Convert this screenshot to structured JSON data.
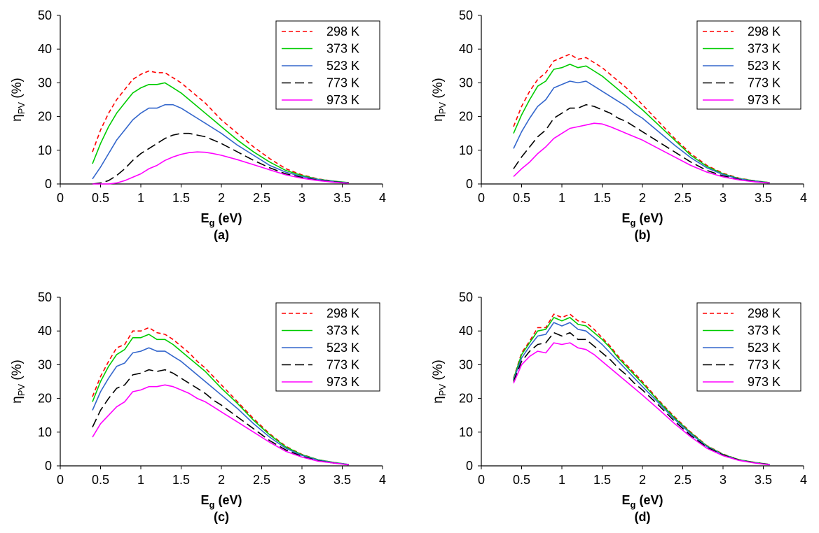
{
  "figure": {
    "legend_labels": [
      "298 K",
      "373 K",
      "523 K",
      "773 K",
      "973 K"
    ],
    "legend_placement": "top-right",
    "series_styles": [
      {
        "color": "#ff0000",
        "dash": "dashed"
      },
      {
        "color": "#00cc00",
        "dash": "solid"
      },
      {
        "color": "#3366cc",
        "dash": "solid"
      },
      {
        "color": "#000000",
        "dash": "long-dashed"
      },
      {
        "color": "#ff00ff",
        "dash": "solid"
      }
    ]
  },
  "chart_data": [
    {
      "type": "line",
      "panel_label": "(a)",
      "xlabel_main": "E",
      "xlabel_sub": "g",
      "xlabel_unit": " (eV)",
      "ylabel_main": "η",
      "ylabel_sub": "PV",
      "ylabel_unit": " (%)",
      "xlim": [
        0,
        4
      ],
      "ylim": [
        0,
        50
      ],
      "xticks": [
        "0",
        "0.5",
        "1",
        "1.5",
        "2",
        "2.5",
        "3",
        "3.5",
        "4"
      ],
      "yticks": [
        "0",
        "10",
        "20",
        "30",
        "40",
        "50"
      ],
      "grid": false,
      "x": [
        0.4,
        0.5,
        0.6,
        0.7,
        0.8,
        0.9,
        1.0,
        1.1,
        1.2,
        1.3,
        1.4,
        1.5,
        1.6,
        1.7,
        1.8,
        1.9,
        2.0,
        2.2,
        2.4,
        2.6,
        2.8,
        3.0,
        3.2,
        3.4,
        3.58
      ],
      "series": [
        {
          "name": "298 K",
          "values": [
            9.5,
            16,
            21,
            25,
            28,
            31,
            32.5,
            33.5,
            33,
            33,
            31.5,
            30,
            28,
            26,
            24,
            21.5,
            19,
            15,
            11,
            7.5,
            4.5,
            2.7,
            1.5,
            0.8,
            0.4
          ]
        },
        {
          "name": "373 K",
          "values": [
            6,
            12,
            17,
            21,
            24,
            27,
            28.5,
            29.5,
            29.5,
            30,
            28.5,
            27,
            25,
            23,
            21,
            19,
            17,
            13,
            9.5,
            6.5,
            4,
            2.5,
            1.4,
            0.8,
            0.4
          ]
        },
        {
          "name": "523 K",
          "values": [
            1.5,
            5,
            9,
            13,
            16,
            19,
            21,
            22.5,
            22.5,
            23.5,
            23.5,
            22.5,
            21,
            19.5,
            18,
            16.5,
            15,
            11.5,
            8.5,
            5.5,
            3.5,
            2.2,
            1.3,
            0.7,
            0.3
          ]
        },
        {
          "name": "773 K",
          "values": [
            0,
            0.3,
            1,
            2.5,
            4.5,
            7,
            9,
            10.5,
            12,
            13.5,
            14.5,
            15,
            15,
            14.5,
            14,
            13,
            12,
            9.5,
            7,
            4.8,
            3,
            1.9,
            1.1,
            0.6,
            0.3
          ]
        },
        {
          "name": "973 K",
          "values": [
            0,
            0,
            0,
            0.3,
            1,
            2,
            3,
            4.5,
            5.5,
            7,
            8,
            8.8,
            9.3,
            9.5,
            9.4,
            9,
            8.5,
            7.2,
            5.7,
            4.2,
            2.7,
            1.7,
            1,
            0.5,
            0.2
          ]
        }
      ]
    },
    {
      "type": "line",
      "panel_label": "(b)",
      "xlabel_main": "E",
      "xlabel_sub": "g",
      "xlabel_unit": " (eV)",
      "ylabel_main": "η",
      "ylabel_sub": "PV",
      "ylabel_unit": " (%)",
      "xlim": [
        0,
        4
      ],
      "ylim": [
        0,
        50
      ],
      "xticks": [
        "0",
        "0.5",
        "1",
        "1.5",
        "2",
        "2.5",
        "3",
        "3.5",
        "4"
      ],
      "yticks": [
        "0",
        "10",
        "20",
        "30",
        "40",
        "50"
      ],
      "grid": false,
      "x": [
        0.4,
        0.5,
        0.6,
        0.7,
        0.8,
        0.9,
        1.0,
        1.1,
        1.2,
        1.3,
        1.4,
        1.5,
        1.6,
        1.7,
        1.8,
        1.9,
        2.0,
        2.2,
        2.4,
        2.6,
        2.8,
        3.0,
        3.2,
        3.4,
        3.58
      ],
      "series": [
        {
          "name": "298 K",
          "values": [
            17,
            23,
            27.5,
            31,
            33,
            36.5,
            37.5,
            38.5,
            37,
            37.5,
            36,
            34.5,
            32.5,
            30.5,
            28.5,
            26,
            23.5,
            18.5,
            13.5,
            9,
            5.5,
            3.2,
            1.7,
            0.9,
            0.4
          ]
        },
        {
          "name": "373 K",
          "values": [
            15,
            20.5,
            25,
            29,
            30.5,
            34,
            34.5,
            35.5,
            34.5,
            35,
            33.5,
            32,
            30,
            28,
            26,
            24,
            22,
            17.5,
            13,
            8.5,
            5.2,
            3,
            1.6,
            0.9,
            0.4
          ]
        },
        {
          "name": "523 K",
          "values": [
            10.5,
            15.5,
            19.5,
            23,
            25,
            28.5,
            29.5,
            30.5,
            30,
            30.5,
            29,
            27.5,
            26,
            24.5,
            23,
            21,
            19.5,
            15.5,
            11.5,
            7.8,
            4.8,
            2.8,
            1.5,
            0.8,
            0.3
          ]
        },
        {
          "name": "773 K",
          "values": [
            4.5,
            8,
            11,
            14,
            16,
            19.5,
            21,
            22.5,
            22.5,
            23.5,
            23,
            22,
            21,
            19.5,
            18.5,
            17,
            15.5,
            12.5,
            9.5,
            6.5,
            4,
            2.4,
            1.3,
            0.7,
            0.3
          ]
        },
        {
          "name": "973 K",
          "values": [
            2.2,
            4.5,
            6.5,
            9,
            11,
            13.5,
            15,
            16.5,
            17,
            17.5,
            18,
            17.8,
            17,
            16,
            15,
            14,
            13,
            10.5,
            8,
            5.5,
            3.5,
            2.1,
            1.2,
            0.6,
            0.3
          ]
        }
      ]
    },
    {
      "type": "line",
      "panel_label": "(c)",
      "xlabel_main": "E",
      "xlabel_sub": "g",
      "xlabel_unit": " (eV)",
      "ylabel_main": "η",
      "ylabel_sub": "PV",
      "ylabel_unit": " (%)",
      "xlim": [
        0,
        4
      ],
      "ylim": [
        0,
        50
      ],
      "xticks": [
        "0",
        "0.5",
        "1",
        "1.5",
        "2",
        "2.5",
        "3",
        "3.5",
        "4"
      ],
      "yticks": [
        "0",
        "10",
        "20",
        "30",
        "40",
        "50"
      ],
      "grid": false,
      "x": [
        0.4,
        0.5,
        0.6,
        0.7,
        0.8,
        0.9,
        1.0,
        1.1,
        1.2,
        1.3,
        1.4,
        1.5,
        1.6,
        1.7,
        1.8,
        1.9,
        2.0,
        2.2,
        2.4,
        2.6,
        2.8,
        3.0,
        3.2,
        3.4,
        3.58
      ],
      "series": [
        {
          "name": "298 K",
          "values": [
            20.5,
            26.5,
            31,
            35,
            36,
            40,
            40,
            41,
            39.5,
            39,
            37.5,
            35.5,
            33.5,
            31,
            29,
            26.5,
            24,
            19,
            14,
            9.5,
            5.8,
            3.4,
            1.8,
            1,
            0.4
          ]
        },
        {
          "name": "373 K",
          "values": [
            19,
            25,
            29.5,
            33,
            34.5,
            38,
            38,
            39,
            37.5,
            37.5,
            36,
            34,
            32,
            30,
            28,
            25.5,
            23,
            18.5,
            13.5,
            9.2,
            5.6,
            3.3,
            1.8,
            1,
            0.4
          ]
        },
        {
          "name": "523 K",
          "values": [
            16.5,
            22,
            26,
            29.5,
            30.5,
            33.5,
            34,
            35,
            34,
            34,
            32.5,
            31,
            29,
            27,
            25,
            23,
            21,
            17,
            12.5,
            8.5,
            5.2,
            3.1,
            1.7,
            0.9,
            0.4
          ]
        },
        {
          "name": "773 K",
          "values": [
            11.5,
            16.5,
            20,
            23,
            24,
            27,
            27.5,
            28.5,
            28,
            28.5,
            27.5,
            26,
            24.5,
            23,
            21.5,
            19.5,
            18,
            14.5,
            11,
            7.5,
            4.7,
            2.8,
            1.5,
            0.8,
            0.3
          ]
        },
        {
          "name": "973 K",
          "values": [
            8.5,
            12.5,
            15,
            17.5,
            19,
            22,
            22.5,
            23.5,
            23.5,
            24,
            23.5,
            22.5,
            21.5,
            20,
            19,
            17.5,
            16,
            13,
            10,
            7,
            4.3,
            2.6,
            1.4,
            0.8,
            0.3
          ]
        }
      ]
    },
    {
      "type": "line",
      "panel_label": "(d)",
      "xlabel_main": "E",
      "xlabel_sub": "g",
      "xlabel_unit": " (eV)",
      "ylabel_main": "η",
      "ylabel_sub": "PV",
      "ylabel_unit": " (%)",
      "xlim": [
        0,
        4
      ],
      "ylim": [
        0,
        50
      ],
      "xticks": [
        "0",
        "0.5",
        "1",
        "1.5",
        "2",
        "2.5",
        "3",
        "3.5",
        "4"
      ],
      "yticks": [
        "0",
        "10",
        "20",
        "30",
        "40",
        "50"
      ],
      "grid": false,
      "x": [
        0.4,
        0.5,
        0.6,
        0.7,
        0.8,
        0.9,
        1.0,
        1.1,
        1.2,
        1.3,
        1.4,
        1.5,
        1.6,
        1.7,
        1.8,
        1.9,
        2.0,
        2.2,
        2.4,
        2.6,
        2.8,
        3.0,
        3.2,
        3.4,
        3.58
      ],
      "series": [
        {
          "name": "298 K",
          "values": [
            26,
            33.5,
            37,
            41,
            41,
            45,
            44,
            45,
            43,
            42.5,
            40.5,
            38,
            35.5,
            32.5,
            30,
            27.5,
            25,
            19.5,
            14.5,
            10,
            6,
            3.5,
            1.8,
            1,
            0.4
          ]
        },
        {
          "name": "373 K",
          "values": [
            25.8,
            33,
            36.5,
            40,
            40.5,
            44,
            43,
            44,
            42,
            41.5,
            39.5,
            37.5,
            35,
            32,
            29.5,
            27,
            24.5,
            19.2,
            14.2,
            9.8,
            5.9,
            3.4,
            1.8,
            1,
            0.4
          ]
        },
        {
          "name": "523 K",
          "values": [
            25.5,
            32,
            35.5,
            38.5,
            39,
            42.5,
            41.5,
            42.5,
            40.5,
            40,
            38,
            36,
            33.5,
            31,
            28.5,
            26,
            23.5,
            18.7,
            13.8,
            9.5,
            5.7,
            3.3,
            1.7,
            0.9,
            0.4
          ]
        },
        {
          "name": "773 K",
          "values": [
            25,
            31,
            34,
            36,
            36.5,
            39.5,
            38.5,
            39.5,
            37.5,
            37.5,
            35.5,
            33.5,
            31.5,
            29,
            27,
            24.5,
            22.5,
            18,
            13.2,
            9,
            5.5,
            3.2,
            1.7,
            0.9,
            0.4
          ]
        },
        {
          "name": "973 K",
          "values": [
            24.5,
            30,
            32.5,
            34,
            33.5,
            36.5,
            36,
            36.5,
            35,
            34.5,
            33,
            31,
            29,
            27,
            25,
            23,
            21,
            16.8,
            12.5,
            8.6,
            5.2,
            3,
            1.6,
            0.8,
            0.3
          ]
        }
      ]
    }
  ]
}
